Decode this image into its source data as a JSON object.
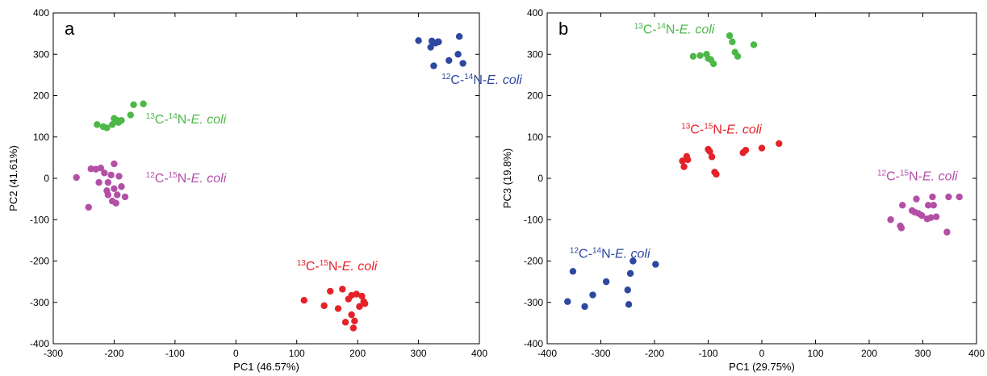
{
  "chart_data": [
    {
      "type": "scatter",
      "panel_label": "a",
      "xlabel": "PC1 (46.57%)",
      "ylabel": "PC2 (41.61%)",
      "xlim": [
        -300,
        400
      ],
      "ylim": [
        -400,
        400
      ],
      "xticks": [
        -300,
        -200,
        -100,
        0,
        100,
        200,
        300,
        400
      ],
      "yticks": [
        -400,
        -300,
        -200,
        -100,
        0,
        100,
        200,
        300,
        400
      ],
      "grid": false,
      "series": [
        {
          "label_parts": [
            "12",
            "C-",
            "14",
            "N-",
            "E. coli"
          ],
          "color": "#2e47a0",
          "label_anchor": [
            338,
            228
          ],
          "points": [
            [
              300,
              333
            ],
            [
              320,
              317
            ],
            [
              322,
              332
            ],
            [
              328,
              327
            ],
            [
              333,
              330
            ],
            [
              332,
              330
            ],
            [
              325,
              272
            ],
            [
              350,
              285
            ],
            [
              367,
              343
            ],
            [
              365,
              300
            ],
            [
              373,
              278
            ]
          ]
        },
        {
          "label_parts": [
            "13",
            "C-",
            "14",
            "N-",
            "E. coli"
          ],
          "color": "#4db848",
          "label_anchor": [
            -148,
            133
          ],
          "points": [
            [
              -228,
              130
            ],
            [
              -218,
              125
            ],
            [
              -212,
              122
            ],
            [
              -203,
              130
            ],
            [
              -198,
              140
            ],
            [
              -193,
              135
            ],
            [
              -188,
              140
            ],
            [
              -173,
              153
            ],
            [
              -168,
              178
            ],
            [
              -152,
              180
            ],
            [
              -200,
              145
            ],
            [
              -195,
              140
            ]
          ]
        },
        {
          "label_parts": [
            "12",
            "C-",
            "15",
            "N-",
            "E. coli"
          ],
          "color": "#b44fa6",
          "label_anchor": [
            -148,
            -10
          ],
          "points": [
            [
              -262,
              2
            ],
            [
              -242,
              -70
            ],
            [
              -238,
              23
            ],
            [
              -230,
              22
            ],
            [
              -225,
              -10
            ],
            [
              -222,
              25
            ],
            [
              -216,
              13
            ],
            [
              -212,
              -30
            ],
            [
              -210,
              -40
            ],
            [
              -205,
              8
            ],
            [
              -203,
              -55
            ],
            [
              -200,
              35
            ],
            [
              -200,
              -25
            ],
            [
              -197,
              -60
            ],
            [
              -195,
              -40
            ],
            [
              -192,
              5
            ],
            [
              -188,
              -20
            ],
            [
              -182,
              -45
            ],
            [
              -210,
              -10
            ]
          ]
        },
        {
          "label_parts": [
            "13",
            "C-",
            "15",
            "N-",
            "E. coli"
          ],
          "color": "#e52229",
          "label_anchor": [
            100,
            -222
          ],
          "points": [
            [
              112,
              -295
            ],
            [
              145,
              -308
            ],
            [
              155,
              -273
            ],
            [
              168,
              -315
            ],
            [
              175,
              -268
            ],
            [
              180,
              -348
            ],
            [
              185,
              -292
            ],
            [
              190,
              -283
            ],
            [
              190,
              -330
            ],
            [
              193,
              -362
            ],
            [
              195,
              -345
            ],
            [
              198,
              -280
            ],
            [
              203,
              -310
            ],
            [
              207,
              -285
            ],
            [
              210,
              -298
            ],
            [
              212,
              -303
            ]
          ]
        }
      ]
    },
    {
      "type": "scatter",
      "panel_label": "b",
      "xlabel": "PC1 (29.75%)",
      "ylabel": "PC3 (19.8%)",
      "xlim": [
        -400,
        400
      ],
      "ylim": [
        -400,
        400
      ],
      "xticks": [
        -400,
        -300,
        -200,
        -100,
        0,
        100,
        200,
        300,
        400
      ],
      "yticks": [
        -400,
        -300,
        -200,
        -100,
        0,
        100,
        200,
        300,
        400
      ],
      "grid": false,
      "series": [
        {
          "label_parts": [
            "13",
            "C-",
            "14",
            "N-",
            "E. coli"
          ],
          "color": "#4db848",
          "label_anchor": [
            -238,
            350
          ],
          "points": [
            [
              -128,
              295
            ],
            [
              -115,
              297
            ],
            [
              -103,
              300
            ],
            [
              -100,
              290
            ],
            [
              -95,
              287
            ],
            [
              -90,
              277
            ],
            [
              -60,
              345
            ],
            [
              -55,
              330
            ],
            [
              -50,
              305
            ],
            [
              -45,
              295
            ],
            [
              -15,
              323
            ]
          ]
        },
        {
          "label_parts": [
            "13",
            "C-",
            "15",
            "N-",
            "E. coli"
          ],
          "color": "#e52229",
          "label_anchor": [
            -150,
            108
          ],
          "points": [
            [
              -148,
              42
            ],
            [
              -145,
              28
            ],
            [
              -140,
              53
            ],
            [
              -138,
              45
            ],
            [
              -100,
              70
            ],
            [
              -97,
              65
            ],
            [
              -93,
              52
            ],
            [
              -88,
              15
            ],
            [
              -85,
              10
            ],
            [
              -35,
              62
            ],
            [
              -30,
              68
            ],
            [
              0,
              73
            ],
            [
              32,
              84
            ]
          ]
        },
        {
          "label_parts": [
            "12",
            "C-",
            "15",
            "N-",
            "E. coli"
          ],
          "color": "#b44fa6",
          "label_anchor": [
            215,
            -5
          ],
          "points": [
            [
              240,
              -100
            ],
            [
              258,
              -115
            ],
            [
              260,
              -120
            ],
            [
              262,
              -65
            ],
            [
              280,
              -78
            ],
            [
              285,
              -82
            ],
            [
              288,
              -50
            ],
            [
              292,
              -85
            ],
            [
              298,
              -90
            ],
            [
              308,
              -98
            ],
            [
              310,
              -65
            ],
            [
              315,
              -95
            ],
            [
              318,
              -45
            ],
            [
              320,
              -65
            ],
            [
              325,
              -93
            ],
            [
              345,
              -130
            ],
            [
              348,
              -45
            ],
            [
              368,
              -45
            ]
          ]
        },
        {
          "label_parts": [
            "12",
            "C-",
            "14",
            "N-",
            "E. coli"
          ],
          "color": "#2e47a0",
          "label_anchor": [
            -358,
            -192
          ],
          "points": [
            [
              -362,
              -298
            ],
            [
              -352,
              -225
            ],
            [
              -330,
              -310
            ],
            [
              -315,
              -282
            ],
            [
              -290,
              -250
            ],
            [
              -250,
              -270
            ],
            [
              -248,
              -305
            ],
            [
              -245,
              -230
            ],
            [
              -240,
              -200
            ],
            [
              -198,
              -208
            ]
          ]
        }
      ]
    }
  ]
}
